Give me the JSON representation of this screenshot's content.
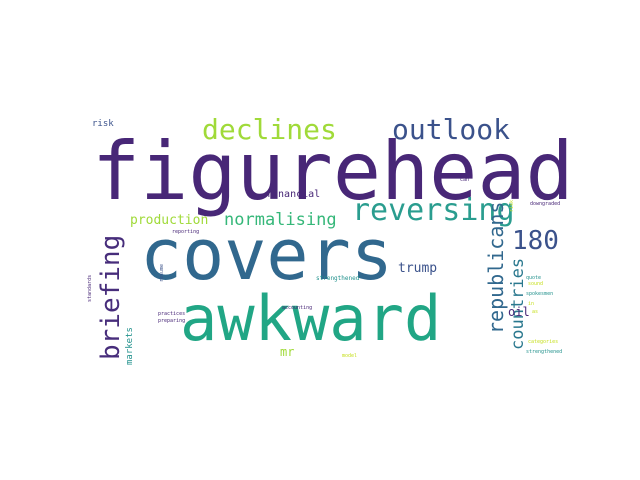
{
  "colors": {
    "background": "#ffffff",
    "dark_purple": "#482777",
    "indigo": "#3b528b",
    "slate_blue": "#31688e",
    "teal": "#21918c",
    "green": "#35b779",
    "lime": "#a0da39",
    "yellow_green": "#c7e020"
  },
  "words": [
    {
      "text": "figurehead",
      "color": "#482777",
      "orientation": "horizontal"
    },
    {
      "text": "covers",
      "color": "#31688e",
      "orientation": "horizontal"
    },
    {
      "text": "awkward",
      "color": "#21a685",
      "orientation": "horizontal"
    },
    {
      "text": "declines",
      "color": "#a0da39",
      "orientation": "horizontal"
    },
    {
      "text": "outlook",
      "color": "#3b528b",
      "orientation": "horizontal"
    },
    {
      "text": "reversing",
      "color": "#2a9d8f",
      "orientation": "horizontal"
    },
    {
      "text": "briefing",
      "color": "#472d7b",
      "orientation": "vertical"
    },
    {
      "text": "180",
      "color": "#3b528b",
      "orientation": "horizontal"
    },
    {
      "text": "republicans",
      "color": "#31688e",
      "orientation": "vertical"
    },
    {
      "text": "countries",
      "color": "#2a788e",
      "orientation": "vertical"
    },
    {
      "text": "normalising",
      "color": "#35b779",
      "orientation": "horizontal"
    },
    {
      "text": "production",
      "color": "#a0da39",
      "orientation": "horizontal"
    },
    {
      "text": "trump",
      "color": "#3b528b",
      "orientation": "horizontal"
    },
    {
      "text": "financial",
      "color": "#482777",
      "orientation": "horizontal"
    },
    {
      "text": "oil",
      "color": "#482777",
      "orientation": "horizontal"
    },
    {
      "text": "mr",
      "color": "#a0da39",
      "orientation": "horizontal"
    },
    {
      "text": "risk",
      "color": "#3b528b",
      "orientation": "horizontal"
    },
    {
      "text": "markets",
      "color": "#21918c",
      "orientation": "vertical"
    },
    {
      "text": "reporting",
      "color": "#482777",
      "orientation": "horizontal"
    },
    {
      "text": "resume",
      "color": "#3b528b",
      "orientation": "vertical"
    },
    {
      "text": "practices",
      "color": "#482777",
      "orientation": "horizontal"
    },
    {
      "text": "preparing",
      "color": "#482777",
      "orientation": "horizontal"
    },
    {
      "text": "accounting",
      "color": "#482777",
      "orientation": "horizontal"
    },
    {
      "text": "strengthened",
      "color": "#21918c",
      "orientation": "horizontal"
    },
    {
      "text": "standards",
      "color": "#482777",
      "orientation": "vertical"
    },
    {
      "text": "downgraded",
      "color": "#482777",
      "orientation": "horizontal"
    },
    {
      "text": "can",
      "color": "#482777",
      "orientation": "horizontal"
    },
    {
      "text": "sound",
      "color": "#c7e020",
      "orientation": "horizontal"
    },
    {
      "text": "quote",
      "color": "#21918c",
      "orientation": "horizontal"
    },
    {
      "text": "spokesmen",
      "color": "#21918c",
      "orientation": "horizontal"
    },
    {
      "text": "categories",
      "color": "#c7e020",
      "orientation": "horizontal"
    },
    {
      "text": "strengthened",
      "color": "#21918c",
      "orientation": "horizontal"
    },
    {
      "text": "model",
      "color": "#c7e020",
      "orientation": "horizontal"
    },
    {
      "text": "in",
      "color": "#c7e020",
      "orientation": "horizontal"
    },
    {
      "text": "as",
      "color": "#c7e020",
      "orientation": "horizontal"
    },
    {
      "text": "risk",
      "color": "#c7e020",
      "orientation": "vertical"
    }
  ]
}
